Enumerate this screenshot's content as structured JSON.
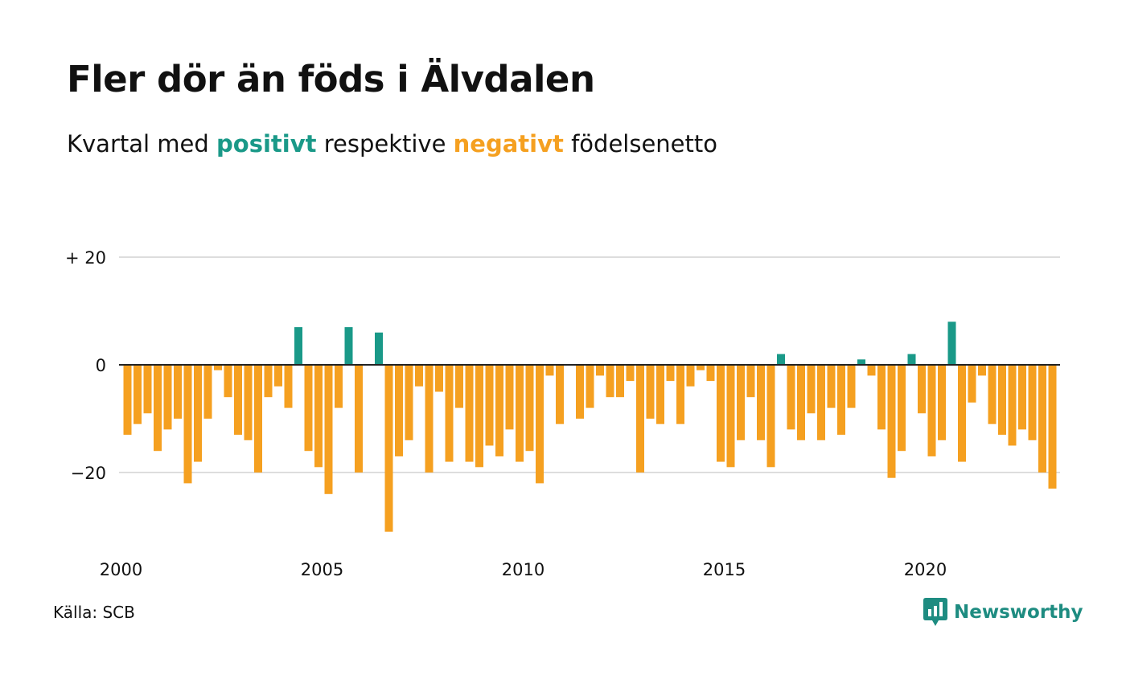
{
  "title": "Fler dör än föds i Älvdalen",
  "subtitle": {
    "prefix": "Kvartal med ",
    "positive_word": "positivt",
    "middle": " respektive ",
    "negative_word": "negativt",
    "suffix": " födelsenetto"
  },
  "source": "Källa: SCB",
  "logo": {
    "text": "Newsworthy",
    "icon": "newsworthy-logo-icon"
  },
  "colors": {
    "positive": "#1a9988",
    "negative": "#f5a020",
    "grid": "#dddddd",
    "zero_line": "#222222",
    "text": "#111111"
  },
  "chart_data": {
    "type": "bar",
    "title": "Fler dör än föds i Älvdalen",
    "subtitle": "Kvartal med positivt respektive negativt födelsenetto",
    "xlabel": "",
    "ylabel": "",
    "ylim": [
      -33,
      20
    ],
    "yticks": [
      {
        "value": 20,
        "label": "+ 20"
      },
      {
        "value": 0,
        "label": "0"
      },
      {
        "value": -20,
        "label": "−20"
      }
    ],
    "xticks": [
      "2000",
      "2005",
      "2010",
      "2015",
      "2020"
    ],
    "start_year": 2000,
    "quarters_per_year": 4,
    "grid": true,
    "values": [
      -13,
      -11,
      -9,
      -16,
      -12,
      -10,
      -22,
      -18,
      -10,
      -1,
      -6,
      -13,
      -14,
      -20,
      -6,
      -4,
      -8,
      7,
      -16,
      -19,
      -24,
      -8,
      7,
      -20,
      0,
      6,
      -31,
      -17,
      -14,
      -4,
      -20,
      -5,
      -18,
      -8,
      -18,
      -19,
      -15,
      -17,
      -12,
      -18,
      -16,
      -22,
      -2,
      -11,
      0,
      -10,
      -8,
      -2,
      -6,
      -6,
      -3,
      -20,
      -10,
      -11,
      -3,
      -11,
      -4,
      -1,
      -3,
      -18,
      -19,
      -14,
      -6,
      -14,
      -19,
      2,
      -12,
      -14,
      -9,
      -14,
      -8,
      -13,
      -8,
      1,
      -2,
      -12,
      -21,
      -16,
      2,
      -9,
      -17,
      -14,
      8,
      -18,
      -7,
      -2,
      -11,
      -13,
      -15,
      -12,
      -14,
      -20,
      -23
    ]
  }
}
